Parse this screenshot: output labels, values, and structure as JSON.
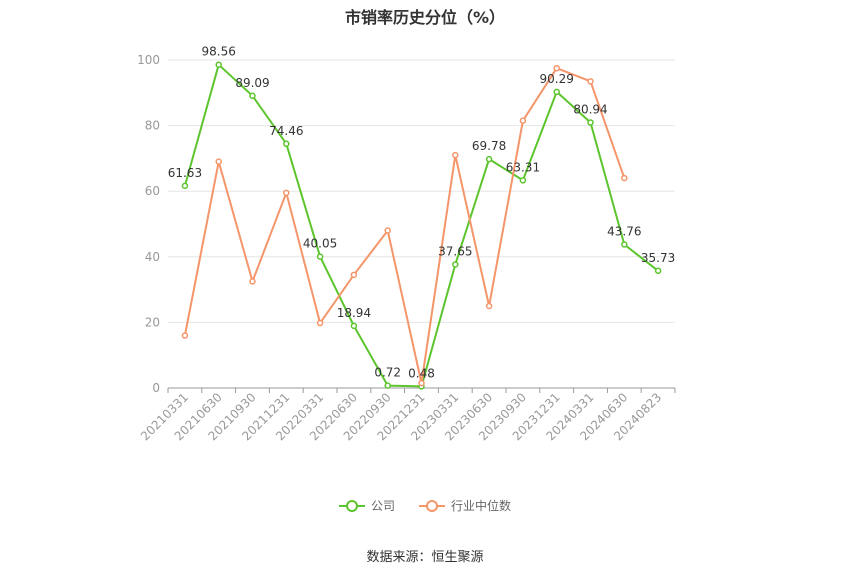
{
  "chart_data": {
    "type": "line",
    "title": "市销率历史分位（%）",
    "categories": [
      "20210331",
      "20210630",
      "20210930",
      "20211231",
      "20220331",
      "20220630",
      "20220930",
      "20221231",
      "20230331",
      "20230630",
      "20230930",
      "20231231",
      "20240331",
      "20240630",
      "20240823"
    ],
    "series": [
      {
        "name": "公司",
        "color": "#5cc52d",
        "values": [
          61.63,
          98.56,
          89.09,
          74.46,
          40.05,
          18.94,
          0.72,
          0.48,
          37.65,
          69.78,
          63.31,
          90.29,
          80.94,
          43.76,
          35.73
        ],
        "labels": [
          "61.63",
          "98.56",
          "89.09",
          "74.46",
          "40.05",
          "18.94",
          "0.72",
          "0.48",
          "37.65",
          "69.78",
          "63.31",
          "90.29",
          "80.94",
          "43.76",
          "35.73"
        ]
      },
      {
        "name": "行业中位数",
        "color": "#f4956a",
        "values": [
          16,
          69,
          32.5,
          59.5,
          19.8,
          34.5,
          48,
          1.5,
          71,
          25,
          81.5,
          97.5,
          93.5,
          64,
          null
        ]
      }
    ],
    "ylim": [
      0,
      100
    ],
    "yticks": [
      0,
      20,
      40,
      60,
      80,
      100
    ],
    "grid": true,
    "legend_position": "bottom"
  },
  "source_text": "数据来源：恒生聚源"
}
